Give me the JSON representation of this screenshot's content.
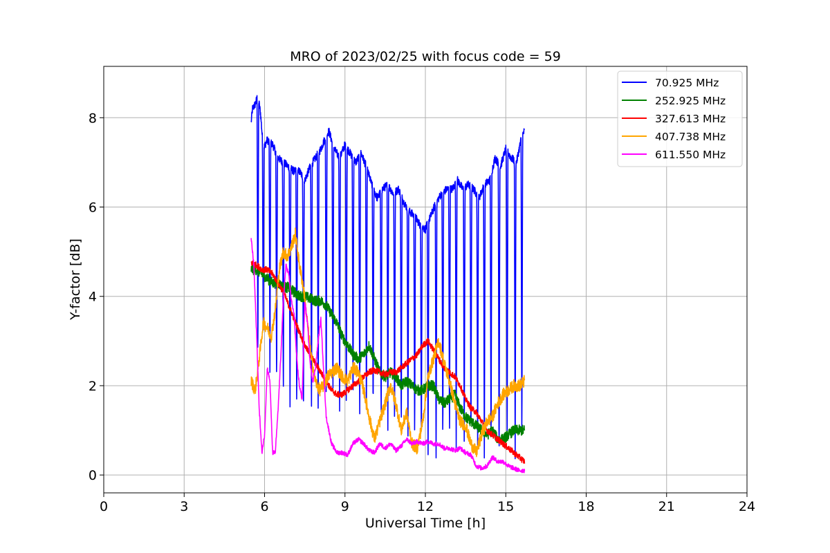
{
  "chart_data": {
    "type": "line",
    "title": "MRO of 2023/02/25 with focus code = 59",
    "xlabel": "Universal Time [h]",
    "ylabel": "Y-factor [dB]",
    "xlim": [
      0,
      24
    ],
    "ylim": [
      -0.4,
      9.15
    ],
    "xticks": [
      0,
      3,
      6,
      9,
      12,
      15,
      18,
      21,
      24
    ],
    "yticks": [
      0,
      2,
      4,
      6,
      8
    ],
    "grid": true,
    "legend_position": "top-right",
    "series": [
      {
        "name": "  70.925 MHz",
        "color": "#0000ff",
        "style": "dips",
        "x": [
          5.5,
          5.55,
          5.65,
          5.75,
          5.85,
          5.95,
          6.1,
          6.3,
          6.5,
          6.7,
          6.9,
          7.1,
          7.3,
          7.5,
          7.7,
          7.9,
          8.1,
          8.3,
          8.4,
          8.6,
          8.8,
          9.0,
          9.2,
          9.4,
          9.6,
          9.8,
          10.0,
          10.2,
          10.4,
          10.6,
          10.8,
          11.0,
          11.2,
          11.4,
          11.6,
          11.8,
          12.0,
          12.2,
          12.4,
          12.6,
          12.8,
          13.0,
          13.2,
          13.4,
          13.6,
          13.8,
          14.0,
          14.2,
          14.4,
          14.6,
          14.8,
          15.0,
          15.2,
          15.4,
          15.6,
          15.7
        ],
        "y": [
          7.9,
          8.2,
          8.3,
          8.5,
          8.1,
          7.3,
          7.5,
          7.4,
          7.1,
          7.0,
          6.9,
          6.8,
          6.8,
          6.6,
          6.9,
          7.1,
          7.3,
          7.6,
          7.7,
          7.3,
          7.1,
          7.4,
          7.2,
          7.0,
          7.2,
          6.9,
          6.5,
          6.2,
          6.4,
          6.5,
          6.3,
          6.4,
          6.1,
          5.9,
          5.8,
          5.6,
          5.5,
          5.8,
          6.1,
          6.3,
          6.4,
          6.4,
          6.6,
          6.4,
          6.5,
          6.4,
          6.2,
          6.5,
          6.6,
          7.1,
          6.9,
          7.3,
          7.1,
          7.0,
          7.6,
          7.7
        ],
        "dips": [
          [
            5.75,
            2.4
          ],
          [
            5.95,
            3.0
          ],
          [
            6.2,
            2.2
          ],
          [
            6.45,
            1.8
          ],
          [
            6.7,
            1.6
          ],
          [
            6.95,
            1.5
          ],
          [
            7.2,
            1.25
          ],
          [
            7.45,
            1.2
          ],
          [
            7.75,
            1.3
          ],
          [
            8.0,
            1.3
          ],
          [
            8.3,
            1.4
          ],
          [
            8.55,
            1.4
          ],
          [
            8.8,
            1.35
          ],
          [
            9.05,
            1.3
          ],
          [
            9.3,
            1.3
          ],
          [
            9.55,
            1.2
          ],
          [
            9.8,
            1.2
          ],
          [
            10.05,
            1.2
          ],
          [
            10.35,
            1.0
          ],
          [
            10.6,
            1.0
          ],
          [
            10.85,
            0.9
          ],
          [
            11.1,
            0.8
          ],
          [
            11.35,
            0.8
          ],
          [
            11.6,
            0.7
          ],
          [
            11.85,
            0.5
          ],
          [
            12.1,
            0.3
          ],
          [
            12.4,
            0.3
          ],
          [
            12.65,
            0.5
          ],
          [
            12.9,
            0.6
          ],
          [
            13.15,
            0.6
          ],
          [
            13.45,
            0.5
          ],
          [
            13.7,
            0.5
          ],
          [
            13.95,
            0.3
          ],
          [
            14.2,
            0.2
          ],
          [
            14.45,
            0.3
          ],
          [
            14.75,
            0.0
          ],
          [
            15.05,
            0.5
          ],
          [
            15.35,
            0.3
          ],
          [
            15.6,
            0.5
          ]
        ]
      },
      {
        "name": "252.925 MHz",
        "color": "#008000",
        "style": "noisy",
        "noise": 0.12,
        "x": [
          5.5,
          5.7,
          5.9,
          6.1,
          6.3,
          6.5,
          6.7,
          6.9,
          7.1,
          7.3,
          7.5,
          7.7,
          7.9,
          8.1,
          8.3,
          8.5,
          8.7,
          8.9,
          9.1,
          9.3,
          9.5,
          9.7,
          9.9,
          10.1,
          10.3,
          10.5,
          10.7,
          10.9,
          11.1,
          11.3,
          11.5,
          11.7,
          11.9,
          12.1,
          12.3,
          12.5,
          12.7,
          12.9,
          13.1,
          13.3,
          13.5,
          13.7,
          13.9,
          14.1,
          14.3,
          14.5,
          14.7,
          14.9,
          15.1,
          15.3,
          15.5,
          15.7
        ],
        "y": [
          4.6,
          4.6,
          4.5,
          4.4,
          4.3,
          4.3,
          4.2,
          4.2,
          4.1,
          4.0,
          4.0,
          3.95,
          3.9,
          3.9,
          3.8,
          3.6,
          3.4,
          3.1,
          2.9,
          2.7,
          2.6,
          2.7,
          2.9,
          2.6,
          2.3,
          2.2,
          2.3,
          2.2,
          2.0,
          2.1,
          2.0,
          1.9,
          1.9,
          2.0,
          2.0,
          1.7,
          1.6,
          1.7,
          1.8,
          1.5,
          1.3,
          1.2,
          1.1,
          1.0,
          0.9,
          1.0,
          0.8,
          0.8,
          0.9,
          1.0,
          1.0,
          1.0
        ]
      },
      {
        "name": "327.613 MHz",
        "color": "#ff0000",
        "style": "noisy",
        "noise": 0.07,
        "x": [
          5.5,
          5.7,
          5.9,
          6.1,
          6.3,
          6.5,
          6.7,
          6.9,
          7.1,
          7.3,
          7.5,
          7.7,
          7.9,
          8.1,
          8.3,
          8.5,
          8.7,
          8.9,
          9.1,
          9.3,
          9.5,
          9.7,
          9.9,
          10.1,
          10.3,
          10.5,
          10.7,
          10.9,
          11.1,
          11.3,
          11.5,
          11.7,
          11.9,
          12.1,
          12.3,
          12.5,
          12.7,
          12.9,
          13.1,
          13.3,
          13.5,
          13.7,
          13.9,
          14.1,
          14.3,
          14.5,
          14.7,
          14.9,
          15.1,
          15.3,
          15.5,
          15.7
        ],
        "y": [
          4.75,
          4.7,
          4.6,
          4.6,
          4.5,
          4.3,
          4.1,
          3.8,
          3.5,
          3.2,
          2.9,
          2.7,
          2.5,
          2.3,
          2.1,
          1.9,
          1.8,
          1.8,
          1.9,
          2.0,
          2.1,
          2.2,
          2.3,
          2.35,
          2.3,
          2.25,
          2.3,
          2.3,
          2.4,
          2.5,
          2.6,
          2.7,
          2.9,
          3.0,
          2.8,
          2.6,
          2.4,
          2.3,
          2.2,
          2.0,
          1.7,
          1.5,
          1.4,
          1.2,
          1.0,
          0.9,
          0.8,
          0.7,
          0.6,
          0.5,
          0.4,
          0.3
        ]
      },
      {
        "name": "407.738 MHz",
        "color": "#ffa500",
        "style": "noisy",
        "noise": 0.14,
        "x": [
          5.5,
          5.65,
          5.8,
          5.95,
          6.1,
          6.25,
          6.4,
          6.55,
          6.7,
          6.85,
          7.0,
          7.15,
          7.3,
          7.45,
          7.6,
          7.75,
          7.9,
          8.05,
          8.2,
          8.35,
          8.5,
          8.7,
          8.9,
          9.1,
          9.3,
          9.5,
          9.7,
          9.9,
          10.1,
          10.3,
          10.5,
          10.7,
          10.9,
          11.1,
          11.3,
          11.5,
          11.7,
          11.9,
          12.1,
          12.3,
          12.5,
          12.7,
          12.9,
          13.1,
          13.3,
          13.5,
          13.7,
          13.9,
          14.1,
          14.3,
          14.5,
          14.7,
          14.9,
          15.1,
          15.3,
          15.5,
          15.7
        ],
        "y": [
          2.1,
          1.9,
          2.6,
          3.4,
          3.3,
          3.1,
          3.7,
          4.6,
          5.0,
          4.9,
          5.1,
          5.4,
          4.7,
          4.2,
          3.4,
          2.6,
          2.1,
          1.9,
          2.0,
          2.2,
          2.3,
          2.4,
          2.2,
          2.1,
          2.4,
          2.3,
          1.9,
          1.3,
          0.8,
          1.2,
          1.6,
          2.0,
          1.6,
          1.0,
          1.4,
          0.7,
          0.6,
          1.2,
          2.2,
          2.6,
          3.0,
          2.5,
          2.1,
          1.6,
          1.2,
          1.1,
          0.7,
          0.5,
          0.9,
          1.2,
          1.3,
          1.6,
          1.8,
          1.9,
          2.0,
          2.0,
          2.1
        ]
      },
      {
        "name": "611.550 MHz",
        "color": "#ff00ff",
        "style": "noisy",
        "noise": 0.05,
        "x": [
          5.5,
          5.6,
          5.7,
          5.8,
          5.9,
          6.0,
          6.1,
          6.2,
          6.3,
          6.4,
          6.5,
          6.6,
          6.7,
          6.8,
          6.9,
          7.0,
          7.1,
          7.2,
          7.3,
          7.4,
          7.5,
          7.6,
          7.7,
          7.8,
          7.9,
          8.0,
          8.1,
          8.2,
          8.3,
          8.5,
          8.7,
          8.9,
          9.1,
          9.3,
          9.5,
          9.7,
          9.9,
          10.1,
          10.3,
          10.5,
          10.7,
          10.9,
          11.1,
          11.3,
          11.5,
          11.7,
          11.9,
          12.1,
          12.3,
          12.5,
          12.7,
          12.9,
          13.1,
          13.3,
          13.5,
          13.7,
          13.9,
          14.1,
          14.3,
          14.5,
          14.7,
          14.9,
          15.1,
          15.3,
          15.5,
          15.7
        ],
        "y": [
          5.3,
          4.7,
          3.2,
          1.5,
          0.5,
          0.9,
          2.4,
          2.1,
          0.5,
          0.5,
          1.4,
          2.6,
          3.9,
          4.7,
          4.5,
          3.9,
          3.6,
          2.6,
          2.0,
          1.7,
          3.9,
          3.4,
          2.5,
          2.1,
          2.4,
          3.0,
          3.5,
          2.4,
          1.3,
          0.7,
          0.5,
          0.5,
          0.45,
          0.7,
          0.8,
          0.7,
          0.55,
          0.5,
          0.7,
          0.6,
          0.7,
          0.55,
          0.65,
          0.8,
          0.7,
          0.75,
          0.7,
          0.75,
          0.7,
          0.7,
          0.6,
          0.6,
          0.55,
          0.6,
          0.5,
          0.45,
          0.2,
          0.15,
          0.2,
          0.4,
          0.3,
          0.3,
          0.2,
          0.15,
          0.1,
          0.1
        ]
      }
    ]
  }
}
